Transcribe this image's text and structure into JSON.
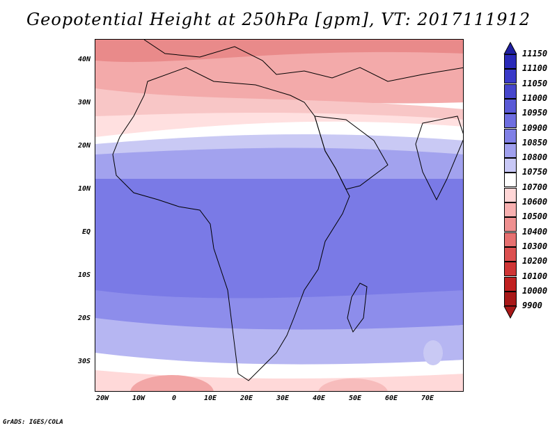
{
  "title": "Geopotential Height at 250hPa [gpm], VT: 2017111912",
  "credit": "GrADS: IGES/COLA",
  "latitude_labels": [
    "40N",
    "30N",
    "20N",
    "10N",
    "EQ",
    "10S",
    "20S",
    "30S"
  ],
  "longitude_labels": [
    "20W",
    "10W",
    "0",
    "10E",
    "20E",
    "30E",
    "40E",
    "50E",
    "60E",
    "70E"
  ],
  "colorbar": {
    "levels": [
      "11150",
      "11100",
      "11050",
      "11000",
      "10950",
      "10900",
      "10850",
      "10800",
      "10750",
      "10700",
      "10600",
      "10500",
      "10400",
      "10300",
      "10200",
      "10100",
      "10000",
      "9900"
    ],
    "colors": [
      "#1f1fa0",
      "#2a2ab8",
      "#3a3ac8",
      "#4646cc",
      "#5a5ad6",
      "#6e6ee0",
      "#8080e6",
      "#a0a0ee",
      "#c8c8f6",
      "#ffffff",
      "#ffd6d6",
      "#f7b0b0",
      "#ef9090",
      "#e67070",
      "#dc5050",
      "#cf3535",
      "#c02020",
      "#a81818"
    ]
  },
  "map": {
    "region": "Africa, Europe and Middle East",
    "field_colors": {
      "deep_blue": "#7474e4",
      "mid_blue": "#8a8aea",
      "light_blue": "#b8b8f2",
      "white": "#ffffff",
      "light_red": "#ffd0d0",
      "mid_red": "#f2a6a6",
      "deep_red": "#e07c7c"
    }
  }
}
